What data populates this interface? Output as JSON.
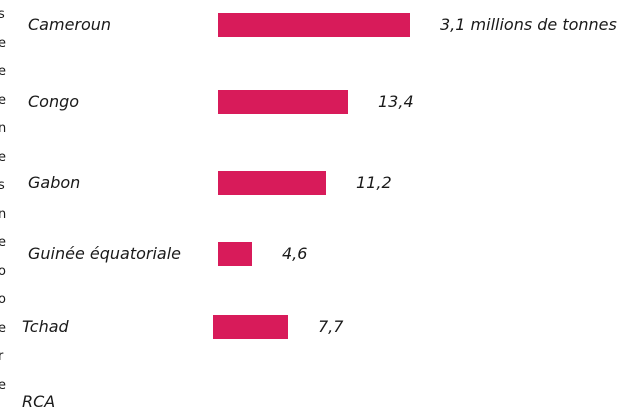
{
  "edge_text": [
    "s",
    "e",
    "e",
    "e",
    "n",
    "e",
    "s",
    "n",
    "e",
    "o",
    "o",
    "e",
    "r",
    "e"
  ],
  "colors": {
    "bar": "#d81b5a",
    "text": "#1a1a1a",
    "background": "#ffffff"
  },
  "chart_data": {
    "type": "bar",
    "orientation": "horizontal",
    "categories": [
      "Cameroun",
      "Congo",
      "Gabon",
      "Guinée équatoriale",
      "Tchad",
      "RCA"
    ],
    "values": [
      3.1,
      13.4,
      11.2,
      4.6,
      7.7,
      null
    ],
    "value_labels": [
      "3,1 millions de tonnes",
      "13,4",
      "11,2",
      "4,6",
      "7,7",
      ""
    ],
    "title": "",
    "xlabel": "",
    "ylabel": "",
    "grid": false,
    "legend": "none"
  }
}
